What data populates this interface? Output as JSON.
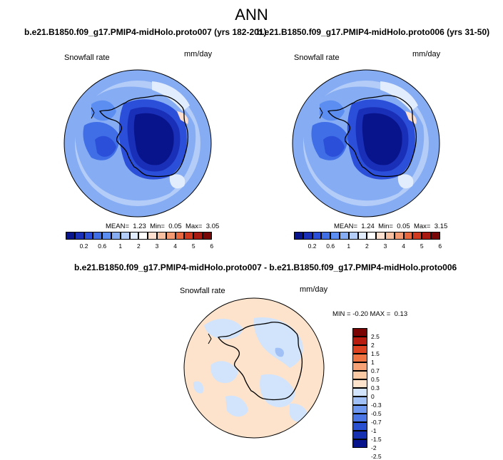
{
  "main_title": "ANN",
  "panels": [
    {
      "title": "b.e21.B1850.f09_g17.PMIP4-midHolo.proto007 (yrs 182-201)",
      "variable": "Snowfall rate",
      "units": "mm/day",
      "stats": {
        "mean_label": "MEAN=",
        "mean": "1.23",
        "min_label": "Min=",
        "min": "0.05",
        "max_label": "Max=",
        "max": "3.05"
      }
    },
    {
      "title": "b.e21.B1850.f09_g17.PMIP4-midHolo.proto006 (yrs 31-50)",
      "variable": "Snowfall rate",
      "units": "mm/day",
      "stats": {
        "mean_label": "MEAN=",
        "mean": "1.24",
        "min_label": "Min=",
        "min": "0.05",
        "max_label": "Max=",
        "max": "3.15"
      }
    }
  ],
  "diff_panel": {
    "title": "b.e21.B1850.f09_g17.PMIP4-midHolo.proto007 - b.e21.B1850.f09_g17.PMIP4-midHolo.proto006",
    "variable": "Snowfall rate",
    "units": "mm/day",
    "stats": {
      "min_label": "MIN =",
      "min": "-0.20",
      "max_label": "MAX =",
      "max": "0.13"
    }
  },
  "colorbar_main": {
    "colors": [
      "#08148c",
      "#1a2fb8",
      "#2b4fd8",
      "#3f6ee6",
      "#5b8ef0",
      "#86acf4",
      "#b4cdf8",
      "#e1ecfc",
      "#ffffff",
      "#fde0cf",
      "#f8bfa0",
      "#f39a72",
      "#e8693f",
      "#d23a1f",
      "#a81911",
      "#780606"
    ],
    "tick_labels": [
      "0.2",
      "0.6",
      "1",
      "2",
      "3",
      "4",
      "5",
      "6"
    ]
  },
  "colorbar_diff": {
    "colors": [
      "#08148c",
      "#1530b0",
      "#2a50d2",
      "#4a76e6",
      "#6f98f0",
      "#a1c0f6",
      "#d2e4fb",
      "#fde3cb",
      "#fbc9a4",
      "#f7a276",
      "#ef7545",
      "#dd4320",
      "#b81c0e",
      "#7a0404"
    ],
    "tick_labels": [
      "2.5",
      "2",
      "1.5",
      "1",
      "0.7",
      "0.5",
      "0.3",
      "0",
      "-0.3",
      "-0.5",
      "-0.7",
      "-1",
      "-1.5",
      "-2",
      "-2.5"
    ]
  }
}
